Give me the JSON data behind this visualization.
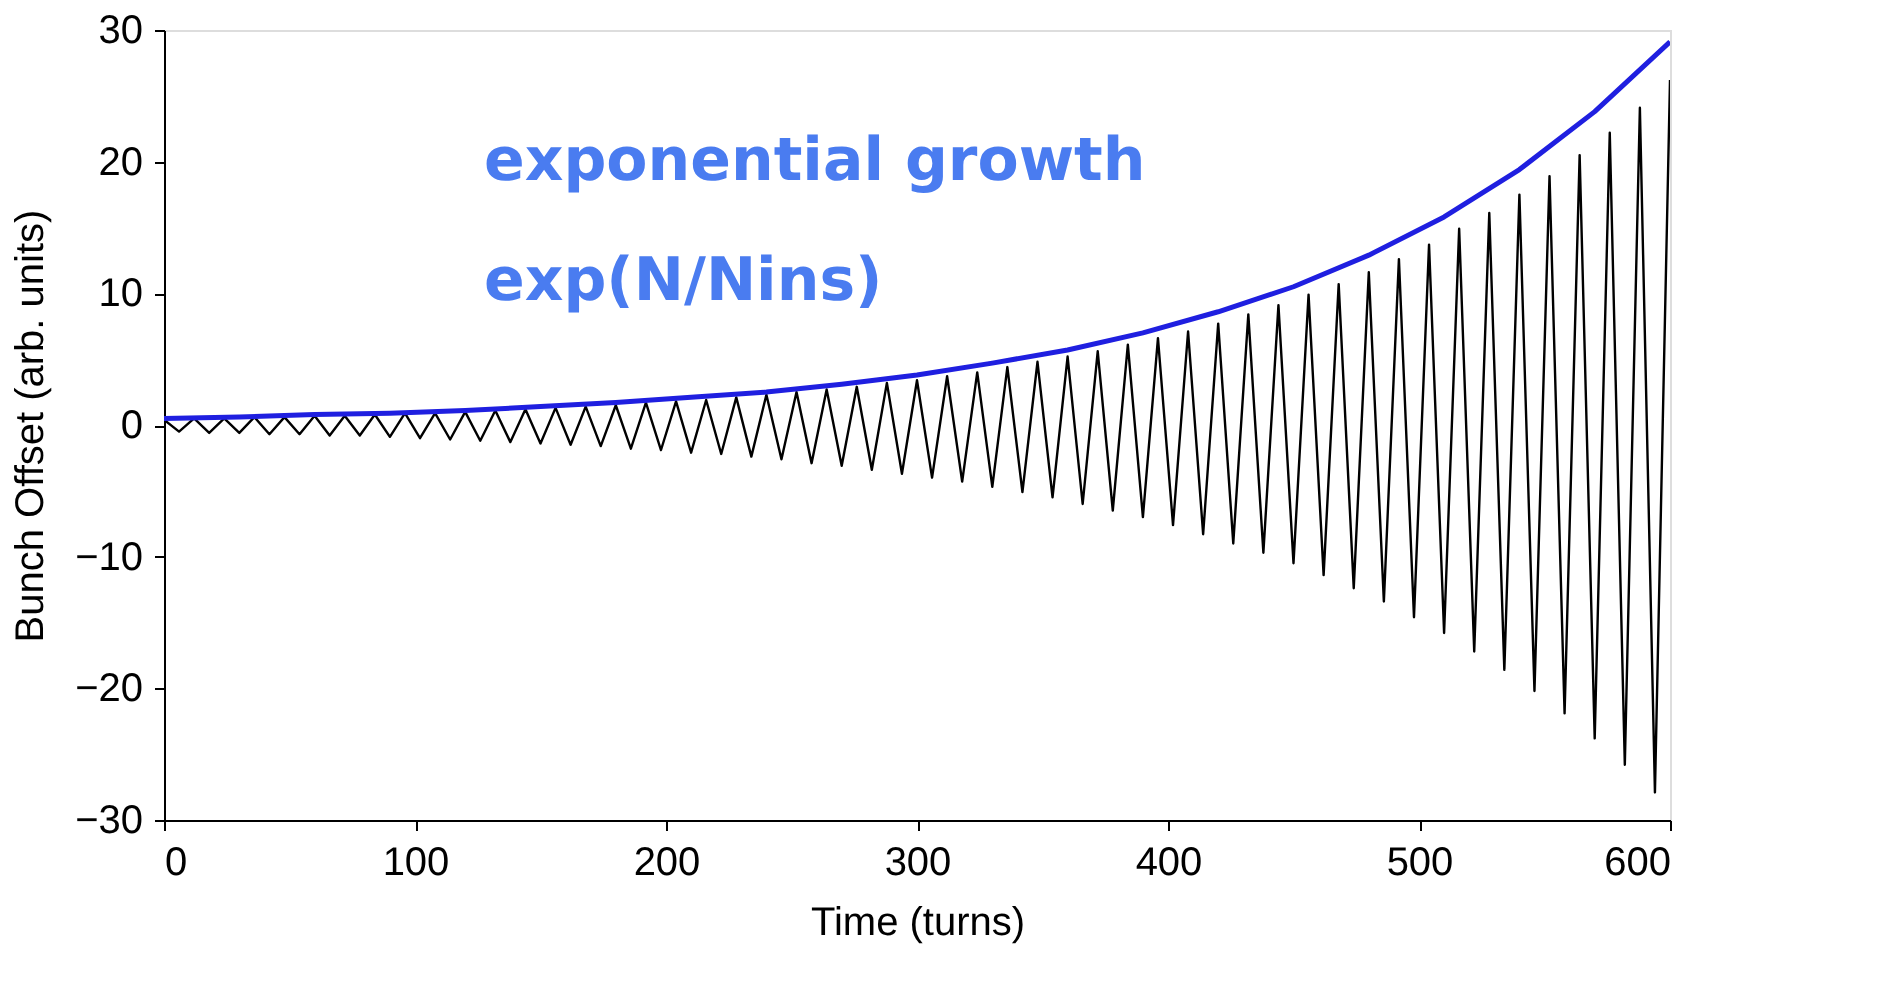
{
  "chart_data": {
    "type": "line",
    "xlabel": "Time (turns)",
    "ylabel": "Bunch Offset (arb. units)",
    "xlim": [
      0,
      600
    ],
    "xticks": [
      0,
      100,
      200,
      300,
      400,
      500,
      600
    ],
    "ylim": [
      -30,
      30
    ],
    "yticks": [
      -30,
      -20,
      -10,
      0,
      10,
      20,
      30
    ],
    "grid": false,
    "line_style": "solid",
    "marker": "none",
    "annotations": [
      "exponential growth",
      "exp(N/Nins)"
    ],
    "series": [
      {
        "color": "#000000",
        "x": [
          0,
          6,
          12,
          18,
          24,
          30,
          36,
          42,
          48,
          54,
          60,
          66,
          72,
          78,
          84,
          90,
          96,
          102,
          108,
          114,
          120,
          126,
          132,
          138,
          144,
          150,
          156,
          162,
          168,
          174,
          180,
          186,
          192,
          198,
          204,
          210,
          216,
          222,
          228,
          234,
          240,
          246,
          252,
          258,
          264,
          270,
          276,
          282,
          288,
          294,
          300,
          306,
          312,
          318,
          324,
          330,
          336,
          342,
          348,
          354,
          360,
          366,
          372,
          378,
          384,
          390,
          396,
          402,
          408,
          414,
          420,
          426,
          432,
          438,
          444,
          450,
          456,
          462,
          468,
          474,
          480,
          486,
          492,
          498,
          504,
          510,
          516,
          522,
          528,
          534,
          540,
          546,
          552,
          558,
          564,
          570,
          576,
          582,
          588,
          594,
          600
        ],
        "values": [
          0.4,
          -0.5,
          0.5,
          -0.6,
          0.5,
          -0.6,
          0.6,
          -0.7,
          0.6,
          -0.7,
          0.7,
          -0.8,
          0.7,
          -0.8,
          0.8,
          -0.9,
          0.9,
          -1.0,
          0.9,
          -1.1,
          1.0,
          -1.2,
          1.1,
          -1.3,
          1.2,
          -1.4,
          1.3,
          -1.5,
          1.4,
          -1.6,
          1.5,
          -1.8,
          1.7,
          -1.9,
          1.8,
          -2.1,
          1.9,
          -2.2,
          2.1,
          -2.4,
          2.3,
          -2.6,
          2.5,
          -2.9,
          2.7,
          -3.1,
          2.9,
          -3.4,
          3.2,
          -3.7,
          3.4,
          -4.0,
          3.7,
          -4.3,
          4.0,
          -4.7,
          4.4,
          -5.1,
          4.8,
          -5.5,
          5.2,
          -6.0,
          5.6,
          -6.5,
          6.1,
          -7.0,
          6.6,
          -7.6,
          7.1,
          -8.3,
          7.7,
          -9.0,
          8.4,
          -9.7,
          9.1,
          -10.5,
          9.9,
          -11.4,
          10.7,
          -12.4,
          11.6,
          -13.4,
          12.6,
          -14.6,
          13.7,
          -15.8,
          14.9,
          -17.2,
          16.1,
          -18.6,
          17.5,
          -20.2,
          18.9,
          -21.9,
          20.5,
          -23.8,
          22.2,
          -25.8,
          24.1,
          -27.9,
          26.2
        ]
      },
      {
        "color": "#1f1fe0",
        "x": [
          0,
          30,
          60,
          90,
          120,
          150,
          180,
          210,
          240,
          270,
          300,
          330,
          360,
          390,
          420,
          450,
          480,
          510,
          540,
          570,
          600
        ],
        "values": [
          0.5,
          0.6,
          0.8,
          0.9,
          1.1,
          1.4,
          1.7,
          2.1,
          2.5,
          3.1,
          3.8,
          4.7,
          5.7,
          7.0,
          8.6,
          10.5,
          12.9,
          15.8,
          19.4,
          23.8,
          29.1
        ]
      }
    ]
  }
}
